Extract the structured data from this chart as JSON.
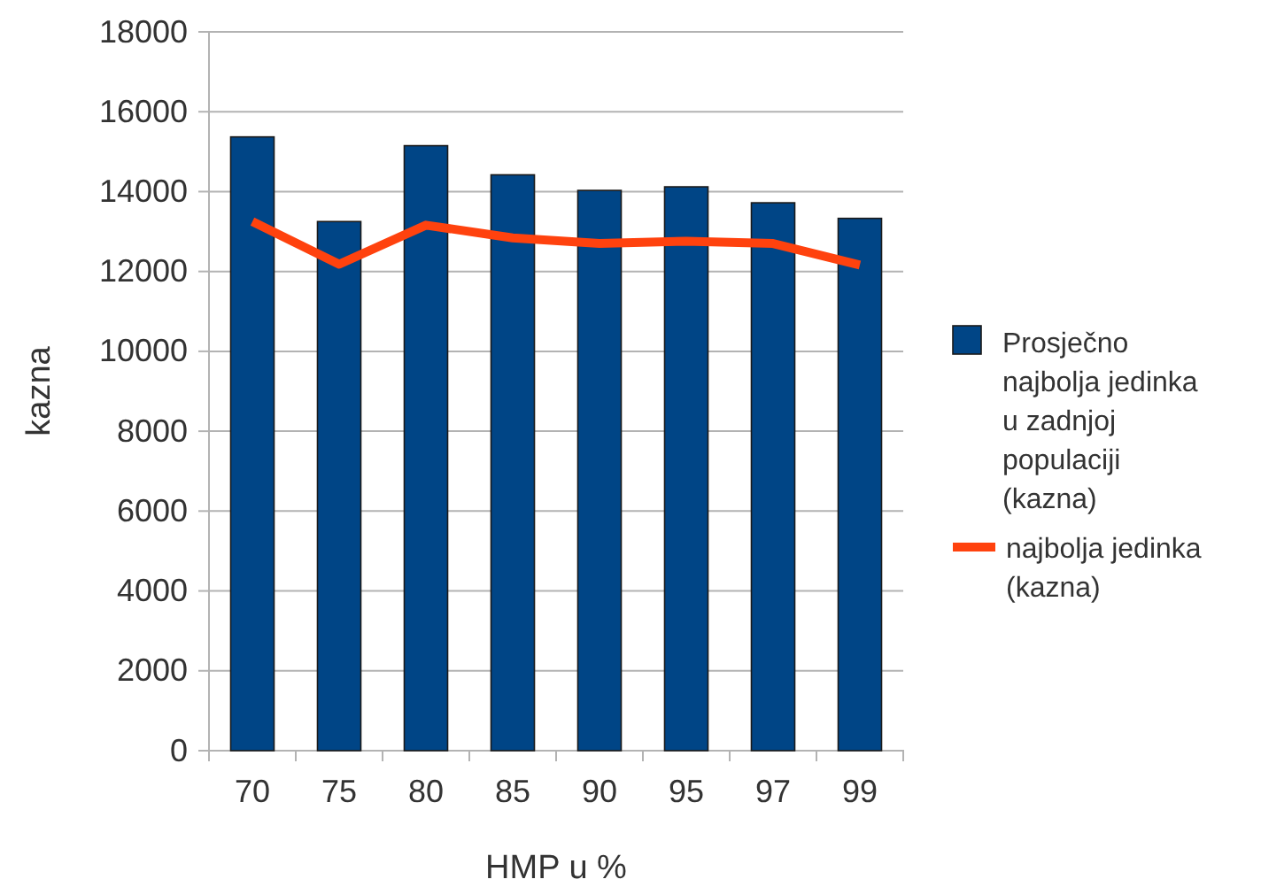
{
  "chart_data": {
    "type": "bar",
    "xlabel": "HMP u %",
    "ylabel": "kazna",
    "categories": [
      "70",
      "75",
      "80",
      "85",
      "90",
      "95",
      "97",
      "99"
    ],
    "series": [
      {
        "name": "Prosječno najbolja jedinka u zadnjoj populaciji (kazna)",
        "color": "#004586",
        "values": [
          15370,
          13250,
          15150,
          14420,
          14030,
          14120,
          13720,
          13330
        ]
      },
      {
        "name": "najbolja jedinka (kazna)",
        "color": "#ff420e",
        "type": "line",
        "values": [
          13250,
          12180,
          13160,
          12840,
          12700,
          12760,
          12700,
          12160
        ]
      }
    ],
    "ylim": [
      0,
      18000
    ],
    "yticks": [
      0,
      2000,
      4000,
      6000,
      8000,
      10000,
      12000,
      14000,
      16000,
      18000
    ],
    "grid": "y",
    "legend": "right",
    "marker": "none",
    "line_style": "solid"
  }
}
